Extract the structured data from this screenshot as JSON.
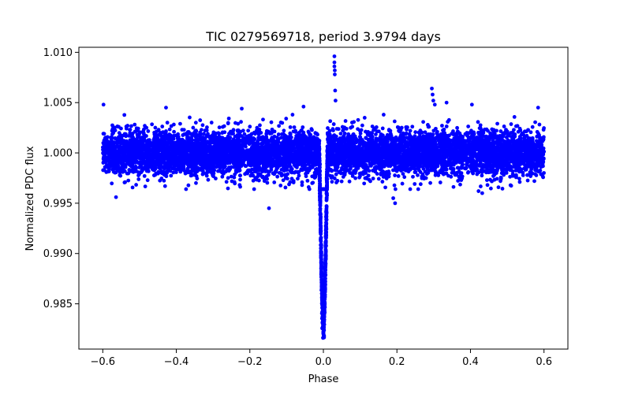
{
  "chart_data": {
    "type": "scatter",
    "title": "TIC 0279569718, period 3.9794 days",
    "xlabel": "Phase",
    "ylabel": "Normalized PDC flux",
    "xlim": [
      -0.665,
      0.665
    ],
    "ylim": [
      0.9805,
      1.0105
    ],
    "xticks": [
      {
        "value": -0.6,
        "label": "−0.6"
      },
      {
        "value": -0.4,
        "label": "−0.4"
      },
      {
        "value": -0.2,
        "label": "−0.2"
      },
      {
        "value": 0.0,
        "label": "0.0"
      },
      {
        "value": 0.2,
        "label": "0.2"
      },
      {
        "value": 0.4,
        "label": "0.4"
      },
      {
        "value": 0.6,
        "label": "0.6"
      }
    ],
    "yticks": [
      {
        "value": 0.985,
        "label": "0.985"
      },
      {
        "value": 0.99,
        "label": "0.990"
      },
      {
        "value": 0.995,
        "label": "0.995"
      },
      {
        "value": 1.0,
        "label": "1.000"
      },
      {
        "value": 1.005,
        "label": "1.005"
      },
      {
        "value": 1.01,
        "label": "1.010"
      }
    ],
    "grid": false,
    "marker_color": "#0000ff",
    "phase_range": [
      -0.6,
      0.6
    ],
    "baseline_flux": 1.0,
    "scatter_sigma": 0.0011,
    "transit": {
      "center_phase": 0.0,
      "depth": 0.0165,
      "half_width_phase": 0.012
    },
    "outliers": [
      {
        "x": 0.03,
        "y": 1.0096
      },
      {
        "x": 0.03,
        "y": 1.009
      },
      {
        "x": 0.03,
        "y": 1.0086
      },
      {
        "x": 0.031,
        "y": 1.0082
      },
      {
        "x": 0.031,
        "y": 1.0078
      },
      {
        "x": 0.032,
        "y": 1.0062
      },
      {
        "x": 0.033,
        "y": 1.0052
      },
      {
        "x": 0.295,
        "y": 1.0064
      },
      {
        "x": 0.297,
        "y": 1.0058
      },
      {
        "x": 0.299,
        "y": 1.0052
      },
      {
        "x": 0.303,
        "y": 1.0048
      },
      {
        "x": 0.335,
        "y": 1.005
      },
      {
        "x": -0.598,
        "y": 1.0048
      },
      {
        "x": 0.404,
        "y": 1.0048
      },
      {
        "x": -0.428,
        "y": 1.0045
      },
      {
        "x": -0.222,
        "y": 1.0044
      },
      {
        "x": 0.584,
        "y": 1.0045
      },
      {
        "x": -0.054,
        "y": 1.0046
      },
      {
        "x": -0.148,
        "y": 0.9945
      },
      {
        "x": 0.195,
        "y": 0.995
      },
      {
        "x": -0.564,
        "y": 0.9956
      },
      {
        "x": -0.04,
        "y": 0.9966
      },
      {
        "x": -0.058,
        "y": 0.9968
      },
      {
        "x": 0.19,
        "y": 0.9955
      },
      {
        "x": 0.422,
        "y": 0.9962
      },
      {
        "x": 0.432,
        "y": 0.996
      },
      {
        "x": 0.002,
        "y": 0.9818
      },
      {
        "x": 0.0,
        "y": 0.9822
      },
      {
        "x": -0.003,
        "y": 0.9826
      }
    ]
  }
}
